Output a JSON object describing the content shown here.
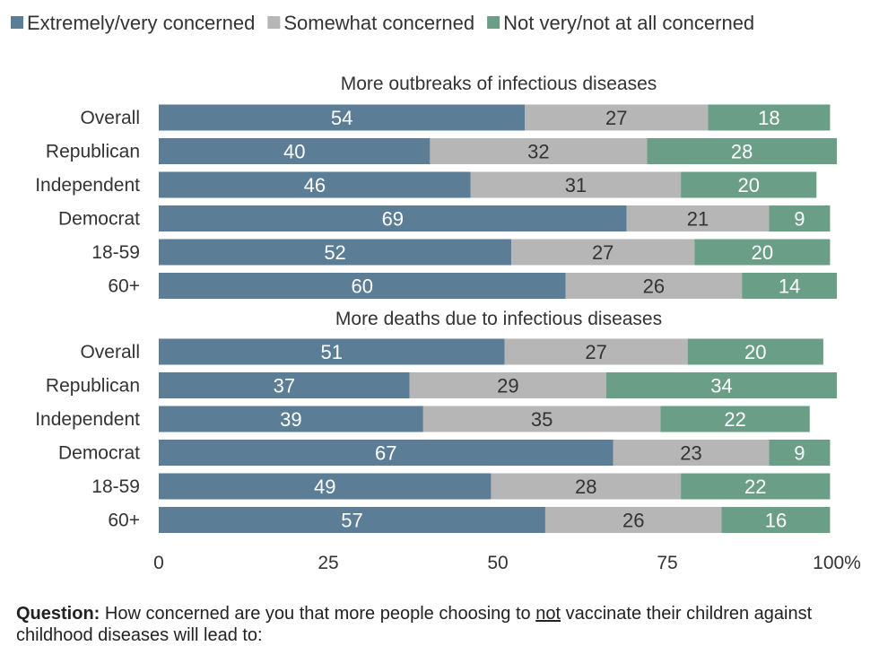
{
  "chart_data": {
    "type": "bar",
    "orientation": "horizontal",
    "stacked": true,
    "legend_position": "top",
    "xlim": [
      0,
      100
    ],
    "x_ticks": [
      "0",
      "25",
      "50",
      "75",
      "100%"
    ],
    "grid": false,
    "series_names": [
      "Extremely/very concerned",
      "Somewhat concerned",
      "Not very/not at all concerned"
    ],
    "colors": [
      "#5b7d95",
      "#b6b6b6",
      "#6b9e86"
    ],
    "groups": [
      {
        "title": "More outbreaks of infectious diseases",
        "categories": [
          "Overall",
          "Republican",
          "Independent",
          "Democrat",
          "18-59",
          "60+"
        ],
        "series": [
          {
            "name": "Extremely/very concerned",
            "values": [
              54,
              40,
              46,
              69,
              52,
              60
            ]
          },
          {
            "name": "Somewhat concerned",
            "values": [
              27,
              32,
              31,
              21,
              27,
              26
            ]
          },
          {
            "name": "Not very/not at all concerned",
            "values": [
              18,
              28,
              20,
              9,
              20,
              14
            ]
          }
        ]
      },
      {
        "title": "More deaths due to infectious diseases",
        "categories": [
          "Overall",
          "Republican",
          "Independent",
          "Democrat",
          "18-59",
          "60+"
        ],
        "series": [
          {
            "name": "Extremely/very concerned",
            "values": [
              51,
              37,
              39,
              67,
              49,
              57
            ]
          },
          {
            "name": "Somewhat concerned",
            "values": [
              27,
              29,
              35,
              23,
              28,
              26
            ]
          },
          {
            "name": "Not very/not at all concerned",
            "values": [
              20,
              34,
              22,
              9,
              22,
              16
            ]
          }
        ]
      }
    ]
  },
  "question": {
    "label": "Question:",
    "text_before": " How concerned are you that more people choosing to ",
    "emphasis": "not",
    "text_after": " vaccinate their children against childhood diseases will lead to:"
  }
}
